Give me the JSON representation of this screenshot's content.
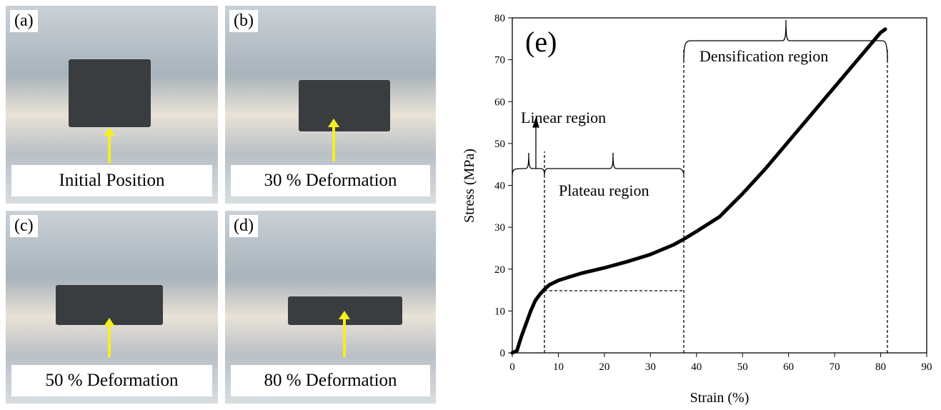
{
  "photos": [
    {
      "label": "(a)",
      "caption": "Initial Position"
    },
    {
      "label": "(b)",
      "caption": "30 % Deformation"
    },
    {
      "label": "(c)",
      "caption": "50 % Deformation"
    },
    {
      "label": "(d)",
      "caption": "80 % Deformation"
    }
  ],
  "chart_data": {
    "type": "line",
    "panel_label": "(e)",
    "x_label": "Strain (%)",
    "y_label": "Stress (MPa)",
    "annotations": [
      "Linear region",
      "Plateau region",
      "Densification region"
    ],
    "x": [
      0,
      1,
      2,
      3,
      4,
      5,
      6,
      7,
      8,
      10,
      12,
      15,
      20,
      25,
      30,
      35,
      37,
      40,
      45,
      50,
      55,
      60,
      65,
      70,
      75,
      80,
      81
    ],
    "values": [
      0,
      0.5,
      4,
      7,
      10,
      12.5,
      14,
      15.2,
      16.2,
      17.3,
      18,
      19,
      20.3,
      21.8,
      23.5,
      25.8,
      27,
      29,
      32.5,
      38,
      44,
      50.5,
      57,
      63.5,
      70,
      76.5,
      77.3
    ],
    "color": "#000000",
    "xlim": [
      0,
      90
    ],
    "xticks": [
      0,
      10,
      20,
      30,
      40,
      50,
      60,
      70,
      80,
      90
    ],
    "ylim": [
      0,
      80
    ],
    "yticks": [
      0,
      10,
      20,
      30,
      40,
      50,
      60,
      70,
      80
    ]
  }
}
